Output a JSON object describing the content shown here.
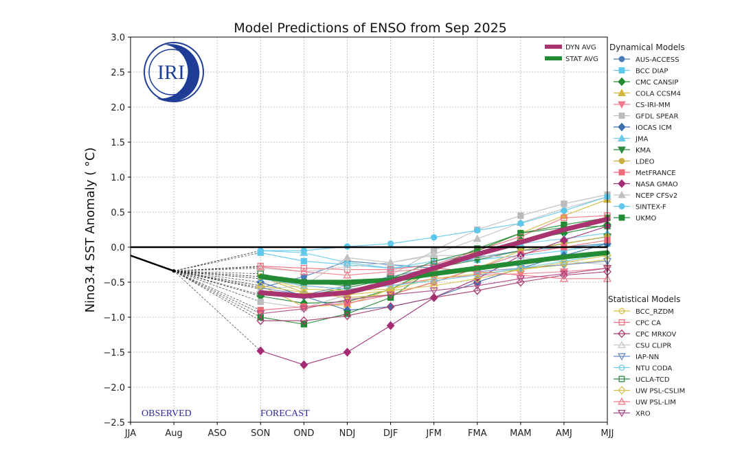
{
  "chart_data": {
    "type": "line",
    "title": "Model Predictions of ENSO from Sep 2025",
    "xlabel": "",
    "ylabel": "Nino3.4 SST Anomaly ( °C)",
    "categories": [
      "JJA",
      "Aug",
      "ASO",
      "SON",
      "OND",
      "NDJ",
      "DJF",
      "JFM",
      "FMA",
      "MAM",
      "AMJ",
      "MJJ"
    ],
    "ylim": [
      -2.5,
      3.0
    ],
    "yticks": [
      "3.0",
      "2.5",
      "2.0",
      "1.5",
      "1.0",
      "0.5",
      "0.0",
      "−0.5",
      "−1.0",
      "−1.5",
      "−2.0",
      "−2.5"
    ],
    "ytick_values": [
      3.0,
      2.5,
      2.0,
      1.5,
      1.0,
      0.5,
      0.0,
      -0.5,
      -1.0,
      -1.5,
      -2.0,
      -2.5
    ],
    "grid": true,
    "annotations": {
      "observed": "OBSERVED",
      "forecast": "FORECAST",
      "logo": "IRI"
    },
    "observed": {
      "categories": [
        "JJA",
        "Aug"
      ],
      "values": [
        -0.12,
        -0.34
      ]
    },
    "forecast_start": "SON",
    "averages": [
      {
        "name": "DYN AVG",
        "color": "#a8336e",
        "values": [
          -0.65,
          -0.7,
          -0.65,
          -0.5,
          -0.3,
          -0.1,
          0.07,
          0.25,
          0.4
        ]
      },
      {
        "name": "STAT AVG",
        "color": "#228b34",
        "values": [
          -0.42,
          -0.5,
          -0.5,
          -0.47,
          -0.38,
          -0.3,
          -0.22,
          -0.14,
          -0.08
        ]
      }
    ],
    "legend_avg_position": "top-right",
    "dynamical_title": "Dynamical Models",
    "statistical_title": "Statistical Models",
    "dynamical": [
      {
        "name": "AUS-ACCESS",
        "color": "#4a7cb8",
        "marker": "circle",
        "filled": true,
        "values": [
          -0.58,
          -0.42,
          -0.2,
          -0.25,
          -0.3,
          -0.15,
          -0.05,
          0.0,
          0.05
        ]
      },
      {
        "name": "BCC DIAP",
        "color": "#5bc8ec",
        "marker": "square",
        "filled": true,
        "values": [
          -0.08,
          -0.2,
          -0.25,
          -0.3,
          -0.25,
          -0.18,
          -0.12,
          -0.05,
          0.05
        ]
      },
      {
        "name": "CMC CANSIP",
        "color": "#1f8a30",
        "marker": "diamond",
        "filled": true,
        "values": [
          -0.7,
          -0.8,
          -0.78,
          -0.6,
          -0.3,
          -0.1,
          0.1,
          0.2,
          0.32
        ]
      },
      {
        "name": "COLA CCSM4",
        "color": "#d4b63a",
        "marker": "triangle-up",
        "filled": true,
        "values": [
          -0.55,
          -0.85,
          -0.82,
          -0.6,
          -0.35,
          -0.05,
          0.2,
          0.45,
          0.68
        ]
      },
      {
        "name": "CS-IRI-MM",
        "color": "#f07a8a",
        "marker": "triangle-down",
        "filled": true,
        "values": [
          -0.45,
          -0.55,
          -0.6,
          -0.55,
          -0.45,
          -0.4,
          -0.38,
          -0.35,
          -0.3
        ]
      },
      {
        "name": "GFDL SPEAR",
        "color": "#bbbbbb",
        "marker": "square",
        "filled": true,
        "values": [
          -0.78,
          -0.87,
          -0.68,
          -0.4,
          -0.05,
          0.25,
          0.45,
          0.62,
          0.75
        ]
      },
      {
        "name": "IOCAS ICM",
        "color": "#3d6eab",
        "marker": "diamond",
        "filled": true,
        "values": [
          -0.5,
          -0.7,
          -0.9,
          -0.85,
          -0.72,
          -0.5,
          -0.3,
          -0.12,
          0.05
        ]
      },
      {
        "name": "JMA",
        "color": "#6ccbe8",
        "marker": "triangle-up",
        "filled": true,
        "values": [
          -0.05,
          -0.08,
          -0.22,
          -0.3,
          -0.2,
          -0.1,
          0.05,
          0.12,
          0.2
        ]
      },
      {
        "name": "KMA",
        "color": "#2e8a3e",
        "marker": "triangle-down",
        "filled": true,
        "values": [
          -0.68,
          -0.7,
          -0.58,
          -0.45,
          -0.3,
          -0.18,
          -0.05,
          0.05,
          0.15
        ]
      },
      {
        "name": "LDEO",
        "color": "#c8b040",
        "marker": "circle",
        "filled": true,
        "values": [
          -0.42,
          -0.65,
          -0.72,
          -0.68,
          -0.5,
          -0.3,
          -0.05,
          0.05,
          0.15
        ]
      },
      {
        "name": "MetFRANCE",
        "color": "#ef6b7a",
        "marker": "square",
        "filled": true,
        "values": [
          -0.9,
          -0.85,
          -0.8,
          -0.68,
          -0.5,
          -0.3,
          -0.1,
          0.0,
          0.1
        ]
      },
      {
        "name": "NASA GMAO",
        "color": "#a32c74",
        "marker": "diamond",
        "filled": true,
        "values": [
          -1.48,
          -1.68,
          -1.5,
          -1.12,
          -0.72,
          -0.45,
          -0.12,
          0.1,
          0.3
        ]
      },
      {
        "name": "NCEP CFSv2",
        "color": "#c0c0c0",
        "marker": "triangle-up",
        "filled": true,
        "values": [
          -0.6,
          -0.55,
          -0.15,
          -0.22,
          -0.1,
          0.12,
          0.35,
          0.55,
          0.72
        ]
      },
      {
        "name": "SINTEX-F",
        "color": "#5ec8ec",
        "marker": "circle",
        "filled": true,
        "values": [
          -0.05,
          -0.05,
          0.01,
          0.05,
          0.14,
          0.24,
          0.34,
          0.52,
          0.72
        ]
      },
      {
        "name": "UKMO",
        "color": "#1f8a30",
        "marker": "square",
        "filled": true,
        "values": [
          -1.0,
          -1.1,
          -0.95,
          -0.72,
          -0.3,
          -0.02,
          0.2,
          0.32,
          0.42
        ]
      }
    ],
    "statistical": [
      {
        "name": "BCC_RZDM",
        "color": "#d8c040",
        "marker": "circle",
        "filled": false,
        "values": [
          -0.42,
          -0.6,
          -0.62,
          -0.6,
          -0.45,
          -0.38,
          -0.32,
          -0.25,
          -0.18
        ]
      },
      {
        "name": "CPC CA",
        "color": "#ef7080",
        "marker": "square",
        "filled": false,
        "values": [
          -0.27,
          -0.3,
          -0.32,
          -0.32,
          -0.25,
          -0.05,
          0.15,
          0.42,
          0.45
        ]
      },
      {
        "name": "CPC MRKOV",
        "color": "#a8386e",
        "marker": "diamond",
        "filled": false,
        "values": [
          -1.05,
          -1.05,
          -0.98,
          -0.85,
          -0.72,
          -0.62,
          -0.5,
          -0.4,
          -0.35
        ]
      },
      {
        "name": "CSU CLIPR",
        "color": "#c8c8c8",
        "marker": "triangle-up",
        "filled": false,
        "values": [
          -0.3,
          -0.35,
          -0.28,
          -0.22,
          -0.12,
          -0.12,
          -0.15,
          -0.2,
          -0.25
        ]
      },
      {
        "name": "IAP-NN",
        "color": "#6a8cc0",
        "marker": "triangle-down",
        "filled": false,
        "values": [
          -0.58,
          -0.68,
          -0.55,
          -0.42,
          -0.3,
          -0.35,
          -0.3,
          -0.25,
          -0.2
        ]
      },
      {
        "name": "NTU CODA",
        "color": "#6ccbe8",
        "marker": "circle",
        "filled": false,
        "values": [
          -0.45,
          -0.55,
          -0.6,
          -0.55,
          -0.48,
          -0.4,
          -0.3,
          -0.2,
          -0.1
        ]
      },
      {
        "name": "UCLA-TCD",
        "color": "#2e8a3e",
        "marker": "square",
        "filled": false,
        "values": [
          -0.38,
          -0.5,
          -0.55,
          -0.45,
          -0.2,
          -0.05,
          0.2,
          0.28,
          0.3
        ]
      },
      {
        "name": "UW PSL-CSLIM",
        "color": "#d6c04a",
        "marker": "diamond",
        "filled": false,
        "values": [
          -0.55,
          -0.65,
          -0.68,
          -0.62,
          -0.55,
          -0.45,
          -0.32,
          -0.22,
          -0.12
        ]
      },
      {
        "name": "UW PSL-LIM",
        "color": "#f07a8a",
        "marker": "triangle-up",
        "filled": false,
        "values": [
          -0.28,
          -0.35,
          -0.4,
          -0.35,
          -0.3,
          -0.35,
          -0.4,
          -0.45,
          -0.45
        ]
      },
      {
        "name": "XRO",
        "color": "#b04884",
        "marker": "triangle-down",
        "filled": false,
        "values": [
          -0.95,
          -0.88,
          -0.75,
          -0.68,
          -0.62,
          -0.55,
          -0.45,
          -0.38,
          -0.3
        ]
      }
    ]
  }
}
